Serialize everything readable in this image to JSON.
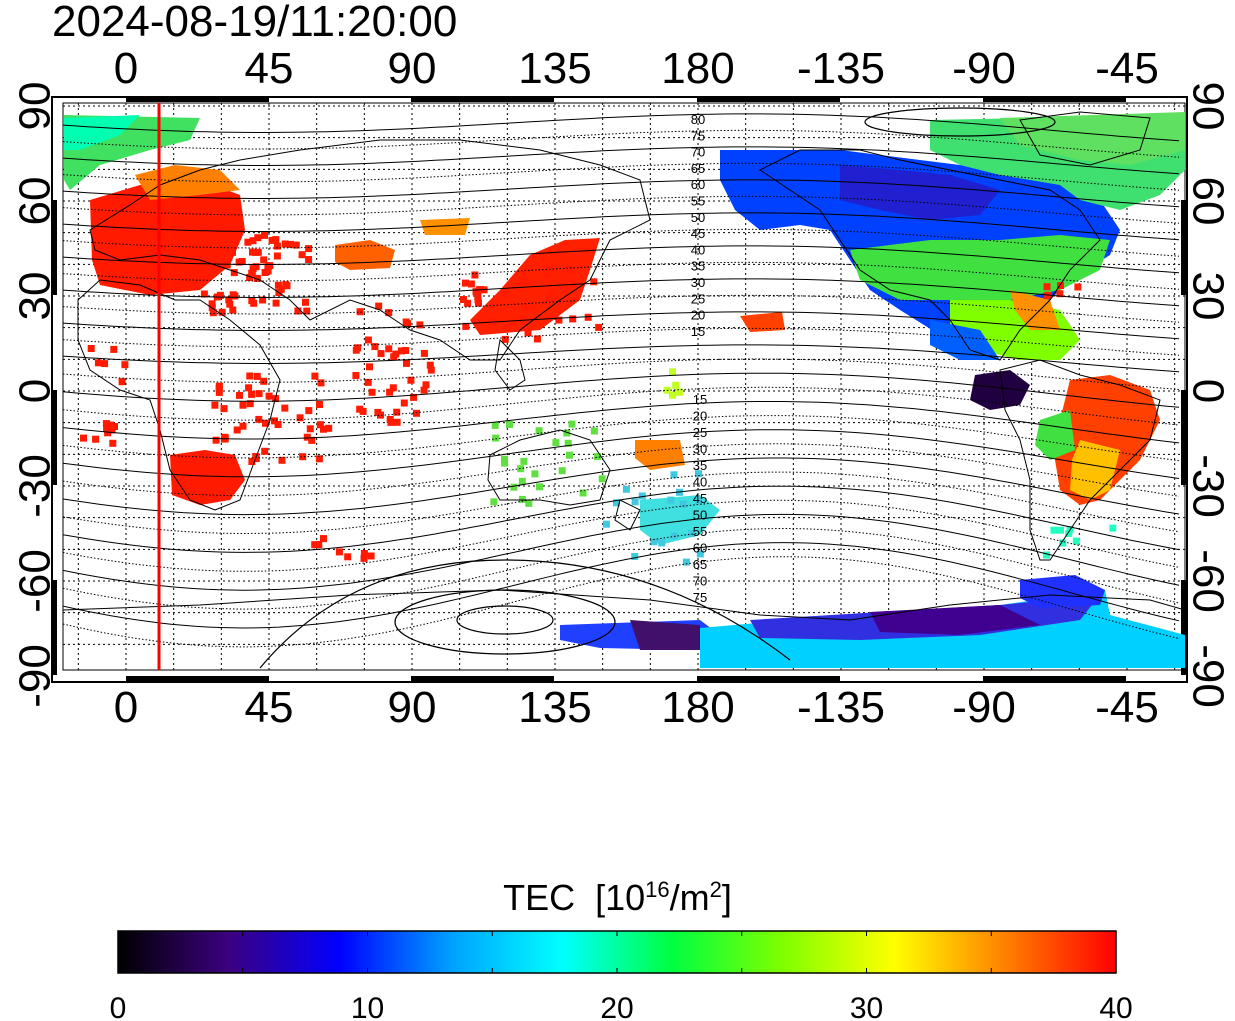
{
  "title": "2024-08-19/11:20:00",
  "x_ticks_top": [
    "0",
    "45",
    "90",
    "135",
    "180",
    "-135",
    "-90",
    "-45"
  ],
  "x_ticks_bottom": [
    "0",
    "45",
    "90",
    "135",
    "180",
    "-135",
    "-90",
    "-45"
  ],
  "y_ticks_left": [
    "90",
    "60",
    "30",
    "0",
    "-30",
    "-60",
    "-90"
  ],
  "y_ticks_right": [
    "90",
    "60",
    "30",
    "0",
    "-30",
    "-60",
    "-90"
  ],
  "contour_labels_north": [
    "80",
    "75",
    "70",
    "65",
    "60",
    "55",
    "50",
    "45",
    "40",
    "35",
    "30",
    "25",
    "20",
    "15"
  ],
  "contour_labels_south": [
    "15",
    "20",
    "25",
    "30",
    "35",
    "40",
    "45",
    "50",
    "55",
    "60",
    "65",
    "70",
    "75"
  ],
  "colorbar": {
    "title": "TEC",
    "unit_prefix": "[10",
    "unit_exp": "16",
    "unit_mid": "/m",
    "unit_exp2": "2",
    "unit_suffix": "]",
    "ticks": [
      "0",
      "10",
      "20",
      "30",
      "40"
    ],
    "colors": [
      "#000000",
      "#3c0080",
      "#0000ff",
      "#00a0ff",
      "#00ffff",
      "#00ff40",
      "#80ff00",
      "#ffff00",
      "#ff8000",
      "#ff0000"
    ]
  },
  "marker_color": "#ff0000"
}
